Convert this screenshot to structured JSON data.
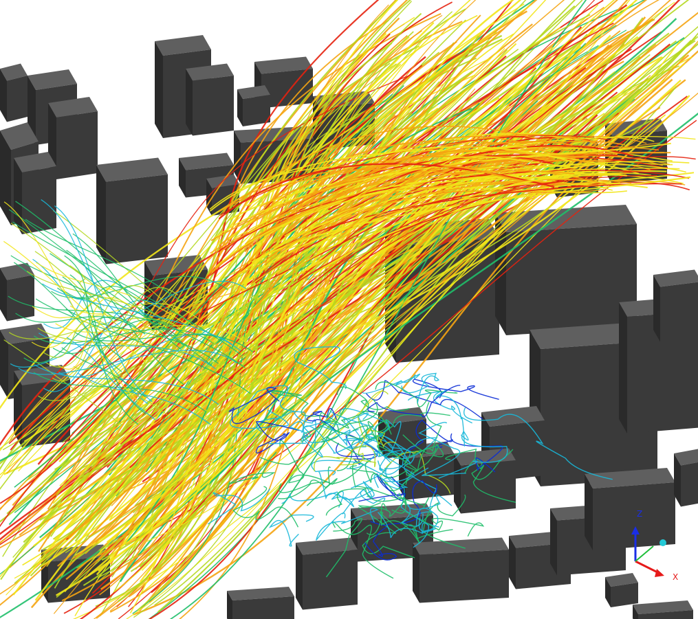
{
  "viewport": {
    "name": "cfd-3d-render-viewport",
    "background": "#ffffff"
  },
  "colors": {
    "building_top": "#5f5f5f",
    "building_front": "#3a3a3a",
    "building_side": "#2a2a2a",
    "streamline_ramp": [
      "#0a2bd6",
      "#18b8d9",
      "#1fbf6a",
      "#b5d820",
      "#f2e51a",
      "#f5a412",
      "#e5220f"
    ]
  },
  "orientation_widget": {
    "icon": "xyz-axes-triad-icon",
    "z_label": "Z",
    "x_label": "X",
    "z_color": "#1a2ee6",
    "x_color": "#e61a1a",
    "y_color": "#1fbf3a",
    "origin_color": "#24c9d6"
  }
}
